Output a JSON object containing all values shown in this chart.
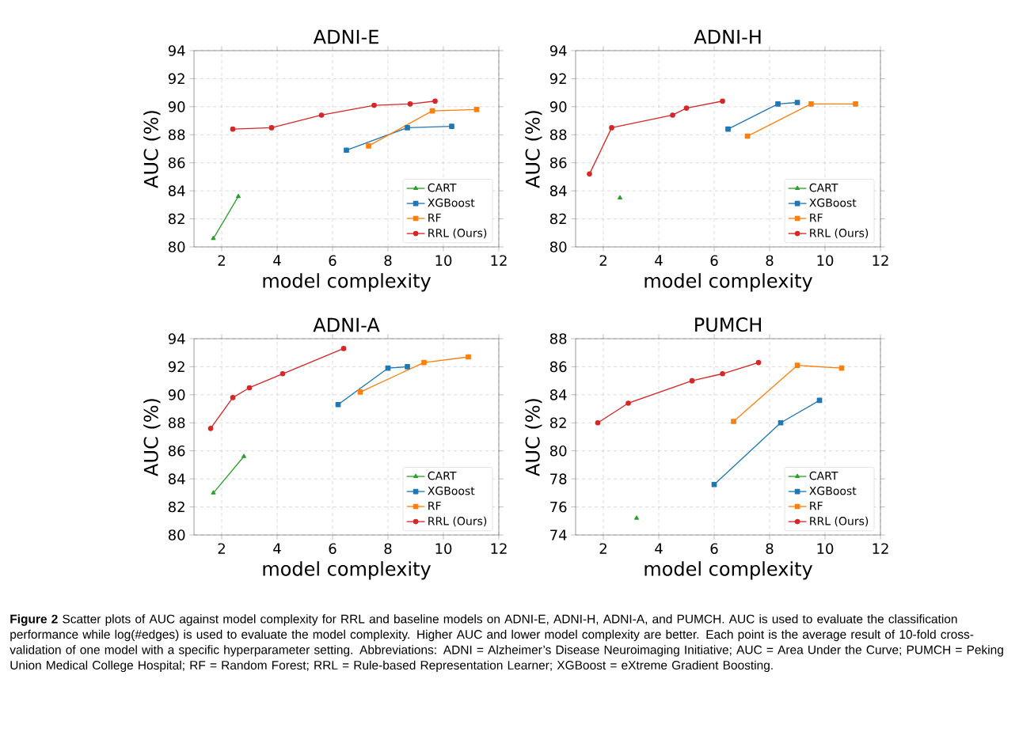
{
  "chart_data": [
    {
      "type": "line",
      "title": "ADNI-E",
      "xlabel": "model complexity",
      "ylabel": "AUC (%)",
      "xlim": [
        1,
        12
      ],
      "ylim": [
        80,
        94
      ],
      "xticks": [
        2,
        4,
        6,
        8,
        10,
        12
      ],
      "yticks": [
        80,
        82,
        84,
        86,
        88,
        90,
        92,
        94
      ],
      "grid": true,
      "legend": "bottom right",
      "series": [
        {
          "name": "CART",
          "color": "#2ca02c",
          "marker": "triangle",
          "x": [
            1.7,
            2.6
          ],
          "values": [
            80.6,
            83.6
          ]
        },
        {
          "name": "XGBoost",
          "color": "#1f77b4",
          "marker": "square",
          "x": [
            6.5,
            8.7,
            10.3
          ],
          "values": [
            86.9,
            88.5,
            88.6
          ]
        },
        {
          "name": "RF",
          "color": "#ff7f0e",
          "marker": "square",
          "x": [
            7.3,
            9.6,
            11.2
          ],
          "values": [
            87.2,
            89.7,
            89.8
          ]
        },
        {
          "name": "RRL (Ours)",
          "color": "#d62728",
          "marker": "circle",
          "x": [
            2.4,
            3.8,
            5.6,
            7.5,
            8.8,
            9.7
          ],
          "values": [
            88.4,
            88.5,
            89.4,
            90.1,
            90.2,
            90.4
          ]
        }
      ]
    },
    {
      "type": "line",
      "title": "ADNI-H",
      "xlabel": "model complexity",
      "ylabel": "AUC (%)",
      "xlim": [
        1,
        12
      ],
      "ylim": [
        80,
        94
      ],
      "xticks": [
        2,
        4,
        6,
        8,
        10,
        12
      ],
      "yticks": [
        80,
        82,
        84,
        86,
        88,
        90,
        92,
        94
      ],
      "grid": true,
      "legend": "bottom right",
      "series": [
        {
          "name": "CART",
          "color": "#2ca02c",
          "marker": "triangle",
          "x": [
            2.6
          ],
          "values": [
            83.5
          ]
        },
        {
          "name": "XGBoost",
          "color": "#1f77b4",
          "marker": "square",
          "x": [
            6.5,
            8.3,
            9.0
          ],
          "values": [
            88.4,
            90.2,
            90.3
          ]
        },
        {
          "name": "RF",
          "color": "#ff7f0e",
          "marker": "square",
          "x": [
            7.2,
            9.5,
            11.1
          ],
          "values": [
            87.9,
            90.2,
            90.2
          ]
        },
        {
          "name": "RRL (Ours)",
          "color": "#d62728",
          "marker": "circle",
          "x": [
            1.5,
            2.3,
            4.5,
            5.0,
            6.3
          ],
          "values": [
            85.2,
            88.5,
            89.4,
            89.9,
            90.4
          ]
        }
      ]
    },
    {
      "type": "line",
      "title": "ADNI-A",
      "xlabel": "model complexity",
      "ylabel": "AUC (%)",
      "xlim": [
        1,
        12
      ],
      "ylim": [
        80,
        94
      ],
      "xticks": [
        2,
        4,
        6,
        8,
        10,
        12
      ],
      "yticks": [
        80,
        82,
        84,
        86,
        88,
        90,
        92,
        94
      ],
      "grid": true,
      "legend": "bottom right",
      "series": [
        {
          "name": "CART",
          "color": "#2ca02c",
          "marker": "triangle",
          "x": [
            1.7,
            2.8
          ],
          "values": [
            83.0,
            85.6
          ]
        },
        {
          "name": "XGBoost",
          "color": "#1f77b4",
          "marker": "square",
          "x": [
            6.2,
            8.0,
            8.7
          ],
          "values": [
            89.3,
            91.9,
            92.0
          ]
        },
        {
          "name": "RF",
          "color": "#ff7f0e",
          "marker": "square",
          "x": [
            7.0,
            9.3,
            10.9
          ],
          "values": [
            90.2,
            92.3,
            92.7
          ]
        },
        {
          "name": "RRL (Ours)",
          "color": "#d62728",
          "marker": "circle",
          "x": [
            1.6,
            2.4,
            3.0,
            4.2,
            6.4
          ],
          "values": [
            87.6,
            89.8,
            90.5,
            91.5,
            93.3
          ]
        }
      ]
    },
    {
      "type": "line",
      "title": "PUMCH",
      "xlabel": "model complexity",
      "ylabel": "AUC (%)",
      "xlim": [
        1,
        12
      ],
      "ylim": [
        74,
        88
      ],
      "xticks": [
        2,
        4,
        6,
        8,
        10,
        12
      ],
      "yticks": [
        74,
        76,
        78,
        80,
        82,
        84,
        86,
        88
      ],
      "grid": true,
      "legend": "bottom right",
      "series": [
        {
          "name": "CART",
          "color": "#2ca02c",
          "marker": "triangle",
          "x": [
            3.2
          ],
          "values": [
            75.2
          ]
        },
        {
          "name": "XGBoost",
          "color": "#1f77b4",
          "marker": "square",
          "x": [
            6.0,
            8.4,
            9.8
          ],
          "values": [
            77.6,
            82.0,
            83.6
          ]
        },
        {
          "name": "RF",
          "color": "#ff7f0e",
          "marker": "square",
          "x": [
            6.7,
            9.0,
            10.6
          ],
          "values": [
            82.1,
            86.1,
            85.9
          ]
        },
        {
          "name": "RRL (Ours)",
          "color": "#d62728",
          "marker": "circle",
          "x": [
            1.8,
            2.9,
            5.2,
            6.3,
            7.6
          ],
          "values": [
            82.0,
            83.4,
            85.0,
            85.5,
            86.3
          ]
        }
      ],
      "annotations": [
        "**Figure 2** Scatter plots of AUC against model complexity for RRL and baseline models on ADNI-E, ADNI-H, ADNI-A, and PUMCH. AUC is used to evaluate the classification performance while log(#edges) is used to evaluate the model complexity. Higher AUC and lower model complexity are better. Each point is the average result of 10-fold cross-validation of one model with a specific hyperparameter setting. Abbreviations: ADNI = Alzheimer’s Disease Neuroimaging Initiative; AUC = Area Under the Curve; PUMCH = Peking Union Medical College Hospital; RF = Random Forest; RRL = Rule-based Representation Learner; XGBoost = eXtreme Gradient Boosting."
      ]
    }
  ]
}
